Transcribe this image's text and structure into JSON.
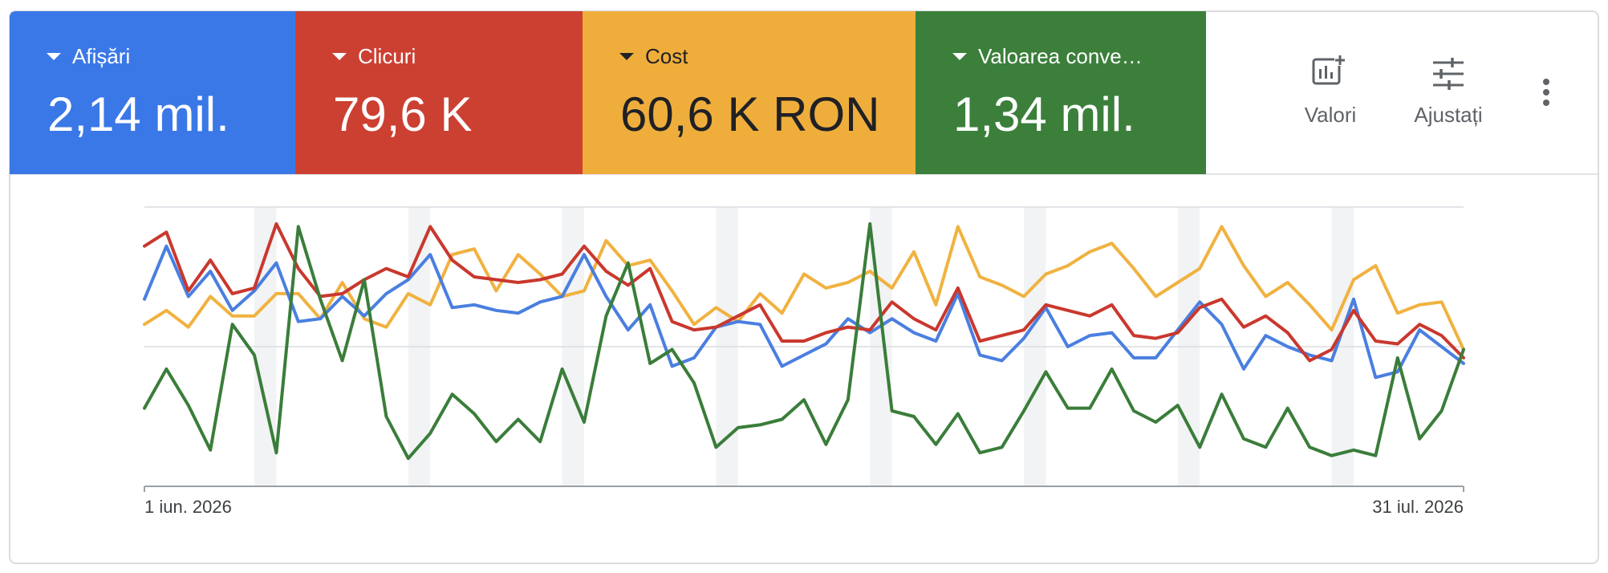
{
  "metrics": [
    {
      "name": "Afișări",
      "value": "2,14 mil.",
      "color": "#3b78e7",
      "text_color": "#ffffff"
    },
    {
      "name": "Clicuri",
      "value": "79,6 K",
      "color": "#cc4032",
      "text_color": "#ffffff"
    },
    {
      "name": "Cost",
      "value": "60,6 K RON",
      "color": "#efae3c",
      "text_color": "#202124"
    },
    {
      "name": "Valoarea conve…",
      "value": "1,34 mil.",
      "color": "#3b7f3b",
      "text_color": "#ffffff"
    }
  ],
  "actions": [
    "Valori",
    "Ajustați"
  ],
  "chart_data": {
    "type": "line",
    "categories": [
      "1 iun. 2026",
      null,
      null,
      null,
      null,
      null,
      null,
      null,
      null,
      null,
      null,
      null,
      null,
      null,
      null,
      null,
      null,
      null,
      null,
      null,
      null,
      null,
      null,
      null,
      null,
      null,
      null,
      null,
      null,
      null,
      null,
      null,
      null,
      null,
      null,
      null,
      null,
      null,
      null,
      null,
      null,
      null,
      null,
      null,
      null,
      null,
      null,
      null,
      null,
      null,
      null,
      null,
      null,
      null,
      null,
      null,
      null,
      null,
      null,
      null,
      "31 iul. 2026"
    ],
    "ylim": [
      0,
      100
    ],
    "yticks": [
      0,
      50,
      100
    ],
    "grid": true,
    "series": [
      {
        "name": "Cost",
        "color": "#f0b240",
        "values": [
          58,
          63,
          57,
          68,
          61,
          61,
          69,
          69,
          60,
          73,
          60,
          57,
          69,
          65,
          83,
          85,
          70,
          83,
          76,
          68,
          70,
          88,
          79,
          81,
          70,
          58,
          64,
          59,
          69,
          62,
          76,
          71,
          73,
          77,
          71,
          84,
          65,
          93,
          75,
          72,
          68,
          76,
          79,
          84,
          87,
          78,
          68,
          73,
          78,
          93,
          79,
          68,
          73,
          65,
          56,
          74,
          79,
          62,
          65,
          66,
          49
        ]
      },
      {
        "name": "Afișări",
        "color": "#4a7fe0",
        "values": [
          67,
          86,
          68,
          77,
          63,
          70,
          80,
          59,
          60,
          68,
          61,
          69,
          74,
          83,
          64,
          65,
          63,
          62,
          66,
          68,
          83,
          68,
          56,
          65,
          43,
          46,
          57,
          59,
          58,
          43,
          47,
          51,
          60,
          55,
          60,
          55,
          52,
          69,
          47,
          45,
          53,
          64,
          50,
          54,
          55,
          46,
          46,
          56,
          66,
          58,
          42,
          54,
          50,
          47,
          45,
          67,
          39,
          41,
          56,
          50,
          44
        ]
      },
      {
        "name": "Clicuri",
        "color": "#c9382e",
        "values": [
          86,
          91,
          70,
          81,
          69,
          71,
          94,
          78,
          68,
          69,
          74,
          78,
          75,
          93,
          81,
          75,
          74,
          73,
          74,
          76,
          86,
          77,
          72,
          78,
          59,
          56,
          57,
          61,
          65,
          52,
          52,
          55,
          57,
          56,
          66,
          60,
          56,
          71,
          52,
          54,
          56,
          65,
          63,
          61,
          65,
          54,
          53,
          55,
          64,
          67,
          57,
          61,
          55,
          45,
          49,
          63,
          52,
          51,
          58,
          54,
          46
        ]
      },
      {
        "name": "Valoarea conve…",
        "color": "#3a7d3a",
        "values": [
          28,
          42,
          29,
          13,
          58,
          47,
          12,
          93,
          67,
          45,
          74,
          25,
          10,
          19,
          33,
          26,
          16,
          24,
          16,
          42,
          23,
          61,
          80,
          44,
          49,
          37,
          14,
          21,
          22,
          24,
          31,
          15,
          31,
          94,
          27,
          25,
          15,
          26,
          12,
          14,
          27,
          41,
          28,
          28,
          42,
          27,
          23,
          29,
          14,
          33,
          17,
          14,
          28,
          14,
          11,
          13,
          11,
          46,
          17,
          27,
          49
        ]
      }
    ]
  }
}
